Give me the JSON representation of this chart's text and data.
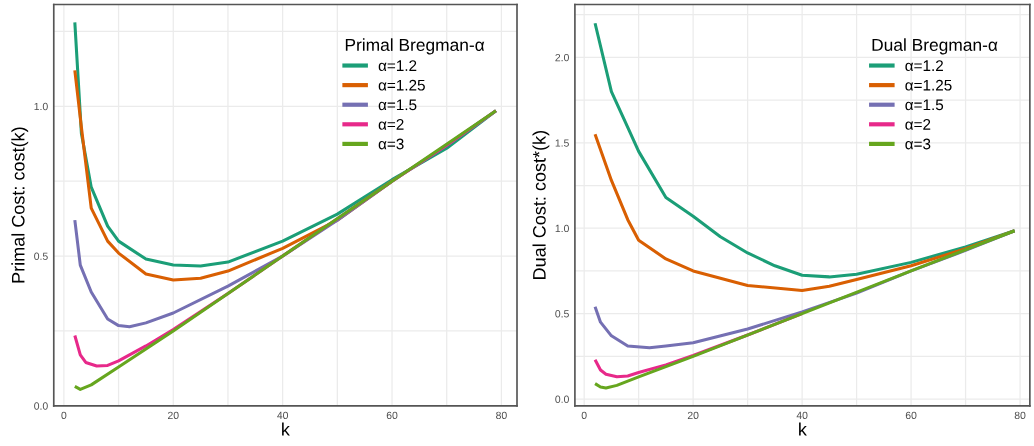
{
  "chart_data": [
    {
      "type": "line",
      "xlabel": "k",
      "ylabel": "Primal Cost: cost(k)",
      "legend_title": "Primal Bregman-α",
      "legend": "top right",
      "grid": true,
      "line_style": "solid",
      "marker": "none",
      "xlim": [
        -1.85,
        82.85
      ],
      "ylim": [
        0,
        1.34
      ],
      "xticks": [
        0,
        {
          "value": 10,
          "label": null
        },
        20,
        {
          "value": 30,
          "label": null
        },
        40,
        {
          "value": 50,
          "label": null
        },
        60,
        {
          "value": 70,
          "label": null
        },
        80
      ],
      "yticks": [
        {
          "value": 0,
          "label": "0.0"
        },
        {
          "value": 0.25,
          "label": null
        },
        {
          "value": 0.5,
          "label": "0.5"
        },
        {
          "value": 0.75,
          "label": null
        },
        {
          "value": 1,
          "label": "1.0"
        },
        {
          "value": 1.25,
          "label": null
        }
      ],
      "series": [
        {
          "name": "α=1.2",
          "color": "#1b9e77",
          "x": [
            2,
            3.2,
            5,
            8,
            10,
            15,
            20,
            25,
            30,
            40,
            50,
            60,
            70,
            79
          ],
          "values": [
            1.28,
            0.91,
            0.73,
            0.6,
            0.55,
            0.49,
            0.47,
            0.467,
            0.48,
            0.55,
            0.64,
            0.755,
            0.86,
            0.985
          ]
        },
        {
          "name": "α=1.25",
          "color": "#d95f02",
          "x": [
            2,
            3.2,
            5,
            8,
            10,
            15,
            20,
            25,
            30,
            40,
            50,
            60
          ],
          "values": [
            1.12,
            0.93,
            0.66,
            0.55,
            0.51,
            0.44,
            0.42,
            0.426,
            0.45,
            0.526,
            0.62,
            0.75
          ]
        },
        {
          "name": "α=1.5",
          "color": "#7570b3",
          "x": [
            2,
            3,
            5,
            8,
            10,
            12,
            15,
            20,
            30,
            40,
            50,
            60,
            70,
            79
          ],
          "values": [
            0.62,
            0.47,
            0.38,
            0.29,
            0.268,
            0.264,
            0.277,
            0.31,
            0.4,
            0.5,
            0.62,
            0.75,
            0.87,
            0.985
          ]
        },
        {
          "name": "α=2",
          "color": "#e7298a",
          "x": [
            2,
            3,
            4,
            6,
            8,
            10,
            15,
            20,
            30,
            40,
            50,
            60,
            70,
            79
          ],
          "values": [
            0.235,
            0.17,
            0.145,
            0.133,
            0.135,
            0.15,
            0.2,
            0.255,
            0.375,
            0.5,
            0.625,
            0.75,
            0.87,
            0.985
          ]
        },
        {
          "name": "α=3",
          "color": "#66a61e",
          "x": [
            2,
            3,
            5,
            10,
            20,
            40,
            60,
            79
          ],
          "values": [
            0.065,
            0.055,
            0.07,
            0.13,
            0.25,
            0.5,
            0.75,
            0.985
          ]
        }
      ]
    },
    {
      "type": "line",
      "xlabel": "k",
      "ylabel": "Dual Cost: cost*(k)",
      "legend_title": "Dual Bregman-α",
      "legend": "top right",
      "grid": true,
      "line_style": "solid",
      "marker": "none",
      "xlim": [
        -1.7,
        81.8
      ],
      "ylim": [
        -0.04,
        2.31
      ],
      "xticks": [
        0,
        {
          "value": 10,
          "label": null
        },
        20,
        {
          "value": 30,
          "label": null
        },
        40,
        {
          "value": 50,
          "label": null
        },
        60,
        {
          "value": 70,
          "label": null
        },
        80
      ],
      "yticks": [
        {
          "value": 0,
          "label": "0.0"
        },
        {
          "value": 0.25,
          "label": null
        },
        {
          "value": 0.5,
          "label": "0.5"
        },
        {
          "value": 0.75,
          "label": null
        },
        {
          "value": 1,
          "label": "1.0"
        },
        {
          "value": 1.25,
          "label": null
        },
        {
          "value": 1.5,
          "label": "1.5"
        },
        {
          "value": 1.75,
          "label": null
        },
        {
          "value": 2,
          "label": "2.0"
        },
        {
          "value": 2.25,
          "label": null
        }
      ],
      "series": [
        {
          "name": "α=1.2",
          "color": "#1b9e77",
          "x": [
            2,
            5,
            8,
            10,
            15,
            20,
            25,
            30,
            35,
            40,
            45,
            50,
            60,
            70,
            79
          ],
          "values": [
            2.2,
            1.8,
            1.59,
            1.45,
            1.18,
            1.07,
            0.95,
            0.855,
            0.78,
            0.725,
            0.715,
            0.73,
            0.8,
            0.89,
            0.985
          ]
        },
        {
          "name": "α=1.25",
          "color": "#d95f02",
          "x": [
            2,
            5,
            8,
            10,
            15,
            20,
            30,
            40,
            45,
            50,
            60,
            70,
            79
          ],
          "values": [
            1.55,
            1.28,
            1.05,
            0.93,
            0.82,
            0.75,
            0.665,
            0.635,
            0.66,
            0.7,
            0.78,
            0.88,
            0.985
          ]
        },
        {
          "name": "α=1.5",
          "color": "#7570b3",
          "x": [
            2,
            3,
            5,
            8,
            12,
            15,
            20,
            30,
            40,
            50,
            60,
            70,
            79
          ],
          "values": [
            0.54,
            0.45,
            0.37,
            0.31,
            0.3,
            0.31,
            0.33,
            0.41,
            0.51,
            0.62,
            0.75,
            0.87,
            0.985
          ]
        },
        {
          "name": "α=2",
          "color": "#e7298a",
          "x": [
            2,
            3,
            4,
            6,
            8,
            10,
            15,
            20,
            30,
            40
          ],
          "values": [
            0.23,
            0.17,
            0.145,
            0.13,
            0.135,
            0.155,
            0.2,
            0.255,
            0.375,
            0.5
          ]
        },
        {
          "name": "α=3",
          "color": "#66a61e",
          "x": [
            2,
            3,
            4,
            6,
            10,
            20,
            40,
            60,
            79
          ],
          "values": [
            0.09,
            0.07,
            0.065,
            0.08,
            0.13,
            0.25,
            0.5,
            0.75,
            0.985
          ]
        }
      ]
    }
  ]
}
